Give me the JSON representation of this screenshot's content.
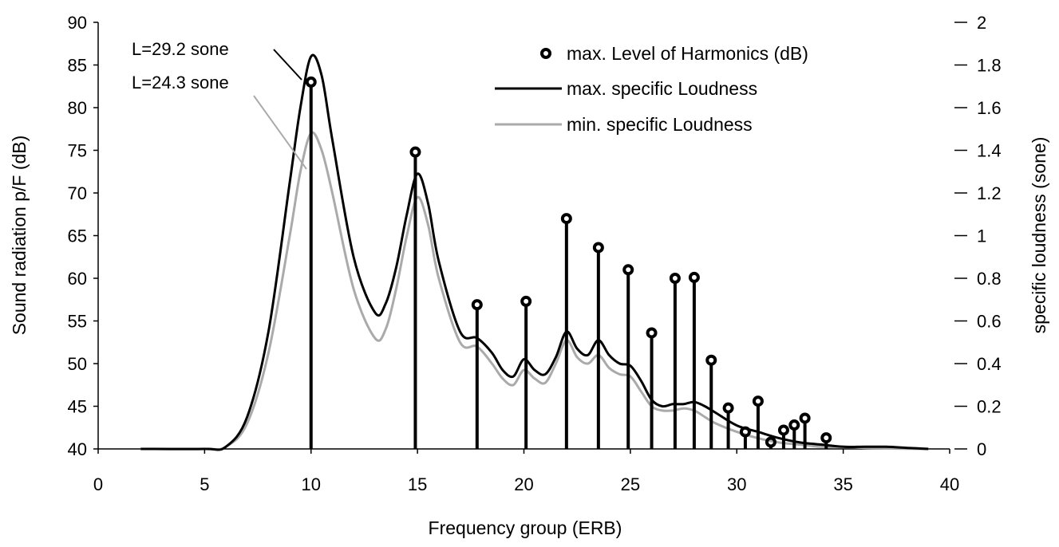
{
  "chart_data": {
    "type": "line",
    "xlabel": "Frequency group (ERB)",
    "ylabel": "Sound radiation p/F (dB)",
    "y2label": "specific loudness (sone)",
    "xlim": [
      0,
      40
    ],
    "ylim": [
      40,
      90
    ],
    "y2lim": [
      0,
      2
    ],
    "x_ticks": [
      "0",
      "5",
      "10",
      "15",
      "20",
      "25",
      "30",
      "35",
      "40"
    ],
    "y_ticks": [
      "40",
      "45",
      "50",
      "55",
      "60",
      "65",
      "70",
      "75",
      "80",
      "85",
      "90"
    ],
    "y2_ticks": [
      "0",
      "0.2",
      "0.4",
      "0.6",
      "0.8",
      "1",
      "1.2",
      "1.4",
      "1.6",
      "1.8",
      "2"
    ],
    "grid": false,
    "legend_position": "top-right",
    "legend": [
      {
        "label": "max. Level of Harmonics (dB)",
        "style": "marker"
      },
      {
        "label": "max. specific Loudness",
        "style": "line",
        "color": "#000000"
      },
      {
        "label": "min. specific Loudness",
        "style": "line",
        "color": "#aaaaaa"
      }
    ],
    "annotations": [
      "L=29.2 sone",
      "L=24.3 sone"
    ],
    "harmonics": {
      "name": "max. Level of Harmonics (dB)",
      "axis": "left",
      "x": [
        10,
        14.9,
        17.8,
        20.1,
        22,
        23.5,
        24.9,
        26,
        27.1,
        28,
        28.8,
        29.6,
        30.4,
        31,
        31.6,
        32.2,
        32.7,
        33.2,
        34.2
      ],
      "y": [
        83,
        74.8,
        56.9,
        57.3,
        67,
        63.6,
        61,
        53.6,
        60,
        60.1,
        50.4,
        44.8,
        42,
        45.6,
        40.8,
        42.2,
        42.8,
        43.6,
        41.3
      ]
    },
    "series": [
      {
        "name": "max. specific Loudness",
        "axis": "right",
        "color": "#000000",
        "x": [
          2,
          5,
          6,
          7,
          8,
          9,
          9.5,
          10,
          10.5,
          11,
          12,
          13,
          13.5,
          14,
          14.5,
          15,
          15.5,
          16,
          17,
          17.8,
          18.5,
          19,
          19.5,
          20,
          20.5,
          21,
          21.5,
          22,
          22.5,
          23,
          23.5,
          24,
          24.5,
          25,
          25.5,
          26,
          26.5,
          27,
          27.5,
          28,
          28.5,
          29,
          30,
          31,
          32,
          33,
          34,
          35,
          36,
          37,
          38,
          39
        ],
        "y": [
          0,
          0,
          0.01,
          0.15,
          0.55,
          1.25,
          1.6,
          1.84,
          1.75,
          1.45,
          0.9,
          0.64,
          0.68,
          0.85,
          1.1,
          1.29,
          1.15,
          0.88,
          0.55,
          0.52,
          0.45,
          0.37,
          0.34,
          0.42,
          0.37,
          0.35,
          0.43,
          0.55,
          0.47,
          0.44,
          0.51,
          0.44,
          0.4,
          0.39,
          0.32,
          0.23,
          0.2,
          0.21,
          0.21,
          0.22,
          0.2,
          0.17,
          0.11,
          0.08,
          0.05,
          0.03,
          0.02,
          0.01,
          0.01,
          0.01,
          0.005,
          0
        ]
      },
      {
        "name": "min. specific Loudness",
        "axis": "right",
        "color": "#aaaaaa",
        "x": [
          2,
          5,
          6,
          7,
          8,
          9,
          9.5,
          10,
          10.5,
          11,
          12,
          13,
          13.5,
          14,
          14.5,
          15,
          15.5,
          16,
          17,
          17.8,
          18.5,
          19,
          19.5,
          20,
          20.5,
          21,
          21.5,
          22,
          22.5,
          23,
          23.5,
          24,
          24.5,
          25,
          25.5,
          26,
          26.5,
          27,
          27.5,
          28,
          28.5,
          29,
          30,
          31,
          32,
          33,
          34,
          35,
          36,
          37,
          38,
          39
        ],
        "y": [
          0,
          0,
          0.01,
          0.12,
          0.45,
          1.0,
          1.3,
          1.48,
          1.4,
          1.2,
          0.75,
          0.52,
          0.56,
          0.75,
          1.0,
          1.18,
          1.05,
          0.8,
          0.5,
          0.48,
          0.4,
          0.33,
          0.3,
          0.37,
          0.33,
          0.31,
          0.4,
          0.51,
          0.43,
          0.4,
          0.44,
          0.38,
          0.35,
          0.34,
          0.27,
          0.2,
          0.18,
          0.18,
          0.19,
          0.18,
          0.15,
          0.12,
          0.08,
          0.05,
          0.03,
          0.02,
          0.01,
          0.01,
          0.005,
          0.002,
          0.001,
          0
        ]
      }
    ]
  }
}
